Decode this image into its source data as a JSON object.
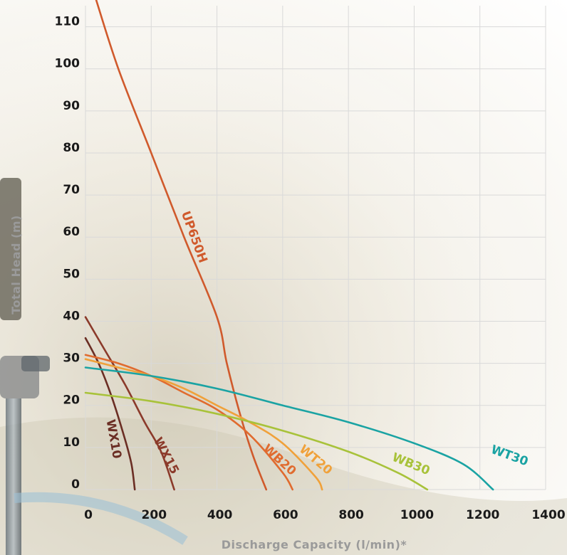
{
  "chart_data": {
    "type": "line",
    "xlabel": "Discharge Capacity (l/min)*",
    "ylabel": "Total Head (m)",
    "xlim": [
      0,
      1400
    ],
    "ylim": [
      0,
      115
    ],
    "xticks": [
      "0",
      "200",
      "400",
      "600",
      "800",
      "1000",
      "1200",
      "1400"
    ],
    "yticks": [
      "0",
      "10",
      "20",
      "30",
      "40",
      "50",
      "60",
      "70",
      "80",
      "90",
      "100",
      "110"
    ],
    "grid": true,
    "series": [
      {
        "name": "UP650H",
        "color": "#d05a2c",
        "x": [
          30,
          100,
          200,
          300,
          400,
          430,
          470,
          510,
          550
        ],
        "y": [
          117,
          100,
          80,
          60,
          41,
          30,
          18,
          8,
          0
        ],
        "label_x": 330,
        "label_y": 60
      },
      {
        "name": "WX10",
        "color": "#6b2e24",
        "x": [
          0,
          40,
          80,
          120,
          140,
          150
        ],
        "y": [
          36,
          30,
          22,
          12,
          6,
          0
        ],
        "label_x": 85,
        "label_y": 12
      },
      {
        "name": "WX15",
        "color": "#8b3a2a",
        "x": [
          0,
          60,
          120,
          180,
          230,
          270
        ],
        "y": [
          41,
          33,
          25,
          16,
          9,
          0
        ],
        "label_x": 245,
        "label_y": 8
      },
      {
        "name": "WB20",
        "color": "#e06b2f",
        "x": [
          0,
          100,
          200,
          300,
          400,
          500,
          600,
          630
        ],
        "y": [
          32,
          30,
          27,
          23,
          19,
          13,
          4,
          0
        ],
        "label_x": 590,
        "label_y": 7
      },
      {
        "name": "WT20",
        "color": "#f0a13a",
        "x": [
          0,
          100,
          200,
          300,
          400,
          500,
          600,
          700,
          720
        ],
        "y": [
          31,
          29,
          27,
          24,
          20,
          16,
          11,
          3,
          0
        ],
        "label_x": 700,
        "label_y": 7
      },
      {
        "name": "WB30",
        "color": "#a8c23a",
        "x": [
          0,
          200,
          400,
          600,
          800,
          950,
          1040
        ],
        "y": [
          23,
          21,
          18,
          14,
          9,
          4,
          0
        ],
        "label_x": 990,
        "label_y": 6
      },
      {
        "name": "WT30",
        "color": "#1aa3a3",
        "x": [
          0,
          200,
          400,
          600,
          800,
          1000,
          1150,
          1240
        ],
        "y": [
          29,
          27,
          24,
          20,
          16,
          11,
          6,
          0
        ],
        "label_x": 1290,
        "label_y": 8
      }
    ]
  }
}
